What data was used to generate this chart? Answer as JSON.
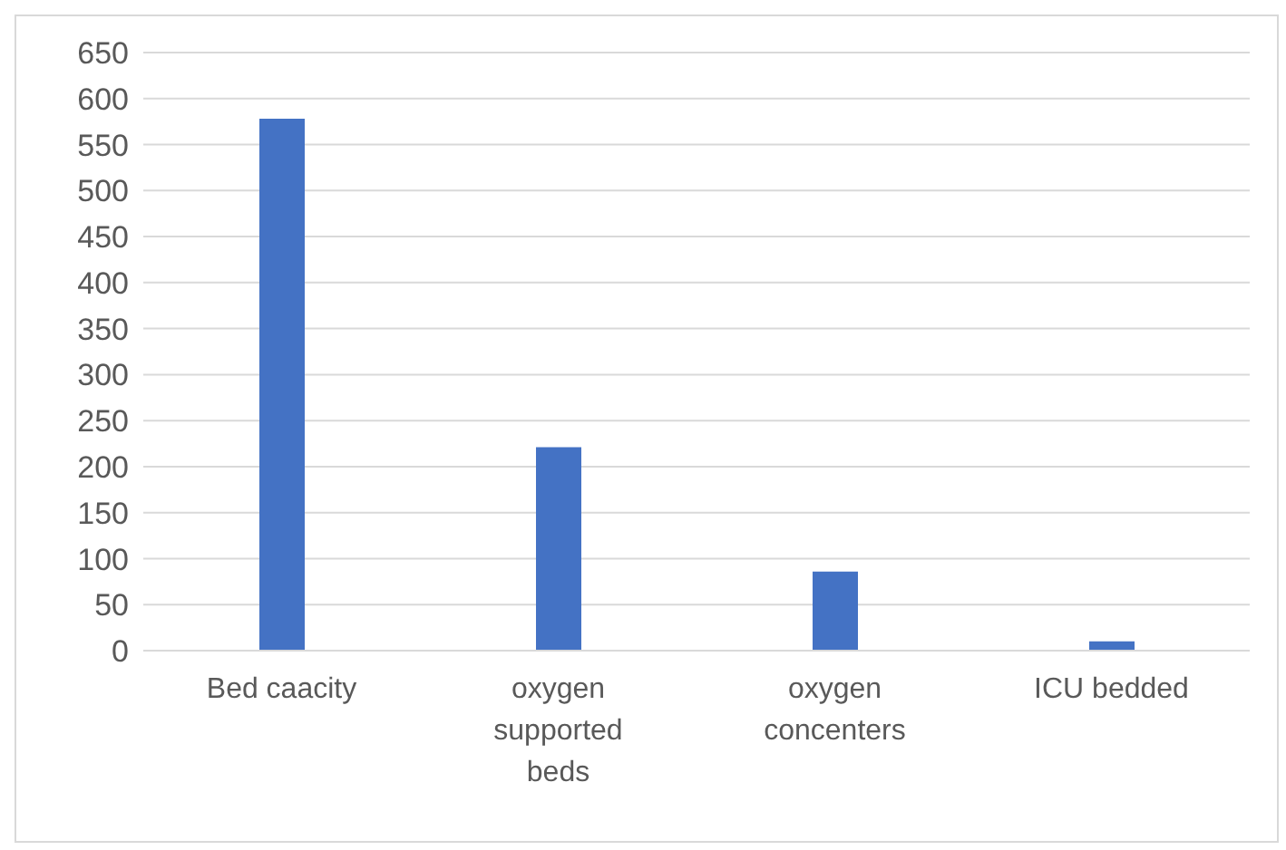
{
  "chart_data": {
    "type": "bar",
    "categories": [
      "Bed caacity",
      "oxygen supported beds",
      "oxygen concenters",
      "ICU bedded"
    ],
    "values": [
      578,
      221,
      86,
      10
    ],
    "color": "#4472c4",
    "ylim": [
      0,
      650
    ],
    "yticks": [
      0,
      50,
      100,
      150,
      200,
      250,
      300,
      350,
      400,
      450,
      500,
      550,
      600,
      650
    ],
    "grid": "y"
  }
}
